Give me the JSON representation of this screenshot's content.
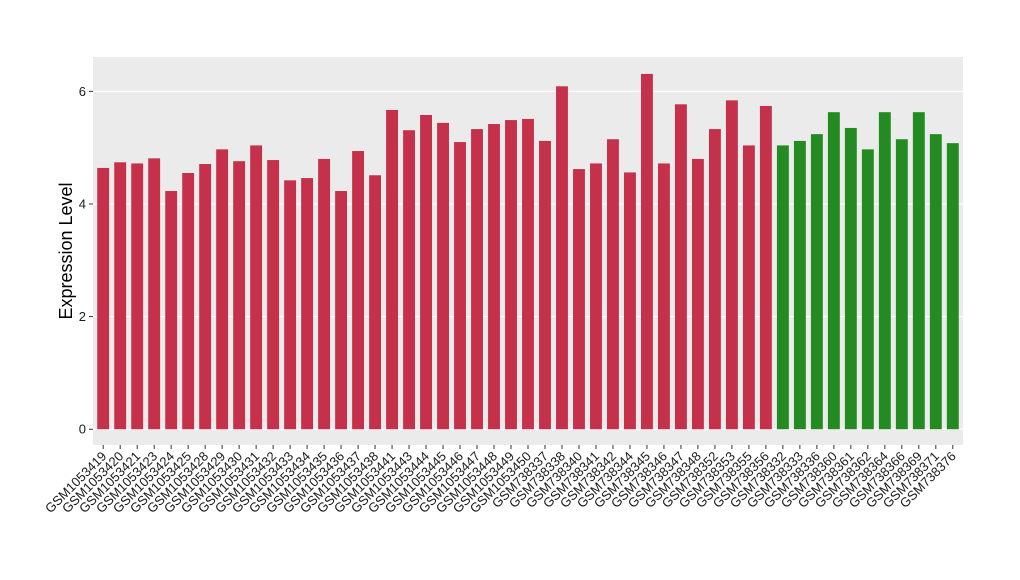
{
  "chart_data": {
    "type": "bar",
    "y_label": "Expression Level",
    "categories": [
      "GSM1053419",
      "GSM1053420",
      "GSM1053421",
      "GSM1053423",
      "GSM1053424",
      "GSM1053425",
      "GSM1053428",
      "GSM1053429",
      "GSM1053430",
      "GSM1053431",
      "GSM1053432",
      "GSM1053433",
      "GSM1053434",
      "GSM1053435",
      "GSM1053436",
      "GSM1053437",
      "GSM1053438",
      "GSM1053441",
      "GSM1053443",
      "GSM1053444",
      "GSM1053445",
      "GSM1053446",
      "GSM1053447",
      "GSM1053448",
      "GSM1053449",
      "GSM1053450",
      "GSM738337",
      "GSM738338",
      "GSM738340",
      "GSM738341",
      "GSM738342",
      "GSM738344",
      "GSM738345",
      "GSM738346",
      "GSM738347",
      "GSM738348",
      "GSM738352",
      "GSM738353",
      "GSM738355",
      "GSM738356",
      "GSM738332",
      "GSM738333",
      "GSM738336",
      "GSM738360",
      "GSM738361",
      "GSM738362",
      "GSM738364",
      "GSM738366",
      "GSM738369",
      "GSM738371",
      "GSM738376"
    ],
    "values": [
      4.64,
      4.74,
      4.72,
      4.81,
      4.23,
      4.55,
      4.71,
      4.97,
      4.76,
      5.04,
      4.78,
      4.42,
      4.46,
      4.8,
      4.23,
      4.94,
      4.51,
      5.67,
      5.31,
      5.58,
      5.44,
      5.1,
      5.33,
      5.42,
      5.49,
      5.51,
      5.12,
      6.09,
      4.62,
      4.72,
      5.15,
      4.56,
      6.31,
      4.72,
      5.77,
      4.8,
      5.33,
      5.84,
      5.04,
      5.74,
      5.04,
      5.12,
      5.24,
      5.63,
      5.35,
      4.97,
      5.63,
      5.15,
      5.63,
      5.24,
      5.08
    ],
    "colors": [
      "#c5314a",
      "#c5314a",
      "#c5314a",
      "#c5314a",
      "#c5314a",
      "#c5314a",
      "#c5314a",
      "#c5314a",
      "#c5314a",
      "#c5314a",
      "#c5314a",
      "#c5314a",
      "#c5314a",
      "#c5314a",
      "#c5314a",
      "#c5314a",
      "#c5314a",
      "#c5314a",
      "#c5314a",
      "#c5314a",
      "#c5314a",
      "#c5314a",
      "#c5314a",
      "#c5314a",
      "#c5314a",
      "#c5314a",
      "#c5314a",
      "#c5314a",
      "#c5314a",
      "#c5314a",
      "#c5314a",
      "#c5314a",
      "#c5314a",
      "#c5314a",
      "#c5314a",
      "#c5314a",
      "#c5314a",
      "#c5314a",
      "#c5314a",
      "#c5314a",
      "#238b22",
      "#238b22",
      "#238b22",
      "#238b22",
      "#238b22",
      "#238b22",
      "#238b22",
      "#238b22",
      "#238b22",
      "#238b22",
      "#238b22"
    ],
    "ylim": [
      -0.28,
      6.61
    ],
    "yticks": [
      0,
      2,
      4,
      6
    ],
    "grid": true
  }
}
